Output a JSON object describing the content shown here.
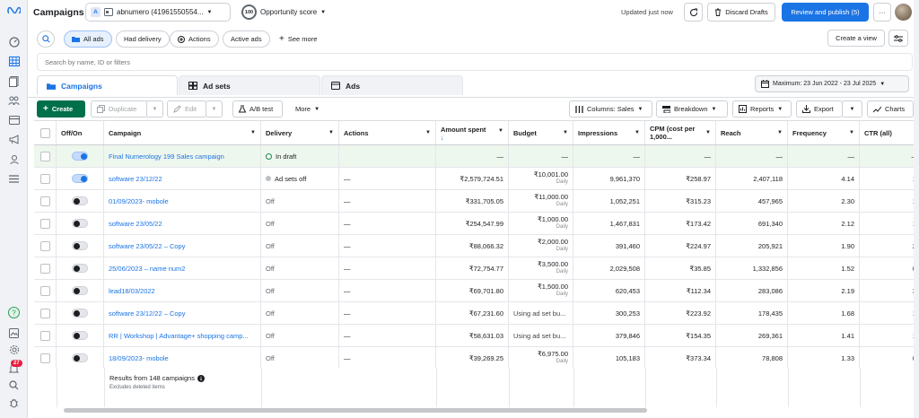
{
  "rail": {
    "notification_count": "27"
  },
  "header": {
    "title": "Campaigns",
    "account_letter": "A",
    "account_name": "abnumero (41961550554...",
    "score_value": "100",
    "score_label": "Opportunity score",
    "updated": "Updated just now",
    "discard": "Discard Drafts",
    "review": "Review and publish (5)",
    "more": "···"
  },
  "filters": {
    "all_ads": "All ads",
    "had_delivery": "Had delivery",
    "actions": "Actions",
    "active_ads": "Active ads",
    "see_more": "See more",
    "create_view": "Create a view"
  },
  "search": {
    "placeholder": "Search by name, ID or filters"
  },
  "tabs": {
    "campaigns": "Campaigns",
    "adsets": "Ad sets",
    "ads": "Ads"
  },
  "date_range": "Maximum: 23 Jun 2022 - 23 Jul 2025",
  "toolbar": {
    "create": "Create",
    "duplicate": "Duplicate",
    "edit": "Edit",
    "ab_test": "A/B test",
    "more": "More",
    "columns": "Columns: Sales",
    "breakdown": "Breakdown",
    "reports": "Reports",
    "export": "Export",
    "charts": "Charts"
  },
  "columns": {
    "onoff": "Off/On",
    "campaign": "Campaign",
    "delivery": "Delivery",
    "actions": "Actions",
    "amount_spent": "Amount spent",
    "budget": "Budget",
    "impressions": "Impressions",
    "cpm": "CPM (cost per 1,000...",
    "reach": "Reach",
    "frequency": "Frequency",
    "ctr": "CTR (all)"
  },
  "rows": [
    {
      "on": true,
      "campaign": "Final Numerology 199 Sales campaign",
      "delivery": "In draft",
      "actions": "",
      "spent": "—",
      "budget": "—",
      "budget_sub": "",
      "impressions": "—",
      "cpm": "—",
      "reach": "—",
      "frequency": "—",
      "ctr": "—"
    },
    {
      "on": true,
      "campaign": "software 23/12/22",
      "delivery": "Ad sets off",
      "actions": "—",
      "spent": "₹2,579,724.51",
      "budget": "₹10,001.00",
      "budget_sub": "Daily",
      "impressions": "9,961,370",
      "cpm": "₹258.97",
      "reach": "2,407,118",
      "frequency": "4.14",
      "ctr": "1."
    },
    {
      "on": false,
      "campaign": "01/09/2023- mobole",
      "delivery": "Off",
      "actions": "—",
      "spent": "₹331,705.05",
      "budget": "₹11,000.00",
      "budget_sub": "Daily",
      "impressions": "1,052,251",
      "cpm": "₹315.23",
      "reach": "457,965",
      "frequency": "2.30",
      "ctr": "1,"
    },
    {
      "on": false,
      "campaign": "software 23/05/22",
      "delivery": "Off",
      "actions": "—",
      "spent": "₹254,547.99",
      "budget": "₹1,000.00",
      "budget_sub": "Daily",
      "impressions": "1,467,831",
      "cpm": "₹173.42",
      "reach": "691,340",
      "frequency": "2.12",
      "ctr": "1."
    },
    {
      "on": false,
      "campaign": "software 23/05/22 – Copy",
      "delivery": "Off",
      "actions": "—",
      "spent": "₹88,066.32",
      "budget": "₹2,000.00",
      "budget_sub": "Daily",
      "impressions": "391,460",
      "cpm": "₹224.97",
      "reach": "205,921",
      "frequency": "1.90",
      "ctr": "2."
    },
    {
      "on": false,
      "campaign": "25/06/2023 – name num2",
      "delivery": "Off",
      "actions": "—",
      "spent": "₹72,754.77",
      "budget": "₹3,500.00",
      "budget_sub": "Daily",
      "impressions": "2,029,508",
      "cpm": "₹35.85",
      "reach": "1,332,856",
      "frequency": "1.52",
      "ctr": "0."
    },
    {
      "on": false,
      "campaign": "lead18/03/2022",
      "delivery": "Off",
      "actions": "—",
      "spent": "₹69,701.80",
      "budget": "₹1,500.00",
      "budget_sub": "Daily",
      "impressions": "620,453",
      "cpm": "₹112.34",
      "reach": "283,086",
      "frequency": "2.19",
      "ctr": "3."
    },
    {
      "on": false,
      "campaign": "software 23/12/22 – Copy",
      "delivery": "Off",
      "actions": "—",
      "spent": "₹67,231.60",
      "budget": "Using ad set bu...",
      "budget_sub": "",
      "impressions": "300,253",
      "cpm": "₹223.92",
      "reach": "178,435",
      "frequency": "1.68",
      "ctr": "1,"
    },
    {
      "on": false,
      "campaign": "RR | Workshop | Advantage+ shopping camp...",
      "delivery": "Off",
      "actions": "—",
      "spent": "₹58,631.03",
      "budget": "Using ad set bu...",
      "budget_sub": "",
      "impressions": "379,846",
      "cpm": "₹154.35",
      "reach": "269,361",
      "frequency": "1.41",
      "ctr": "1."
    },
    {
      "on": false,
      "campaign": "18/09/2023- mobole",
      "delivery": "Off",
      "actions": "—",
      "spent": "₹39,269.25",
      "budget": "₹6,975.00",
      "budget_sub": "Daily",
      "impressions": "105,183",
      "cpm": "₹373.34",
      "reach": "78,808",
      "frequency": "1.33",
      "ctr": "0."
    }
  ],
  "footer": {
    "results": "Results from 148 campaigns",
    "excludes": "Excludes deleted items"
  },
  "colors": {
    "accent": "#1b74e4",
    "create_green": "#00704a",
    "draft_row": "#eef7ee"
  }
}
